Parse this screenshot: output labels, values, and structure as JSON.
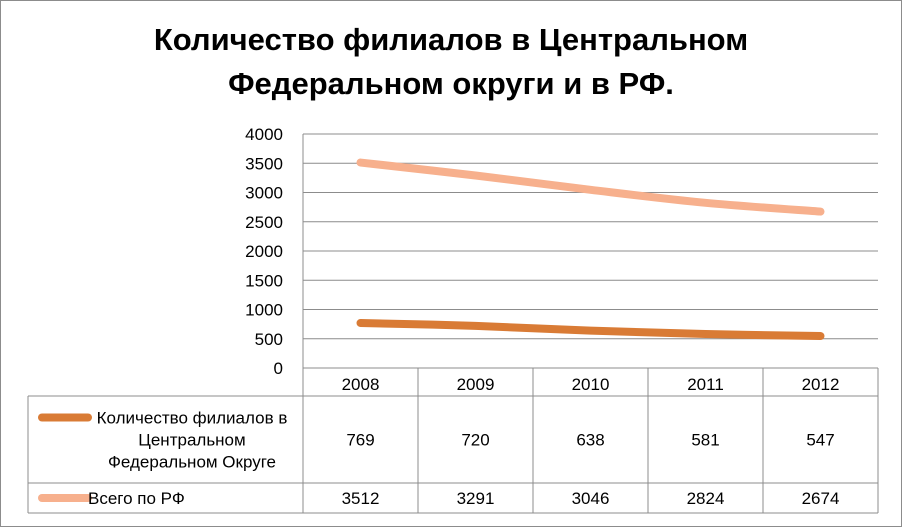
{
  "chart_data": {
    "type": "line",
    "title_line1": "Количество филиалов в Центральном",
    "title_line2": "Федеральном округи и в РФ.",
    "categories": [
      "2008",
      "2009",
      "2010",
      "2011",
      "2012"
    ],
    "ylim": [
      0,
      4000
    ],
    "y_ticks": [
      "0",
      "500",
      "1000",
      "1500",
      "2000",
      "2500",
      "3000",
      "3500",
      "4000"
    ],
    "grid": true,
    "legend_placement": "data table below plot",
    "series": [
      {
        "name": "Количество филиалов в Центральном Федеральном Округе",
        "name_lines": [
          "Количество филиалов в",
          "Центральном",
          "Федеральном Округе"
        ],
        "values": [
          769,
          720,
          638,
          581,
          547
        ],
        "labels": [
          "769",
          "720",
          "638",
          "581",
          "547"
        ],
        "color": "#d97b35"
      },
      {
        "name": "Всего по РФ",
        "name_lines": [
          "Всего по РФ"
        ],
        "values": [
          3512,
          3291,
          3046,
          2824,
          2674
        ],
        "labels": [
          "3512",
          "3291",
          "3046",
          "2824",
          "2674"
        ],
        "color": "#f7b08d"
      }
    ]
  }
}
